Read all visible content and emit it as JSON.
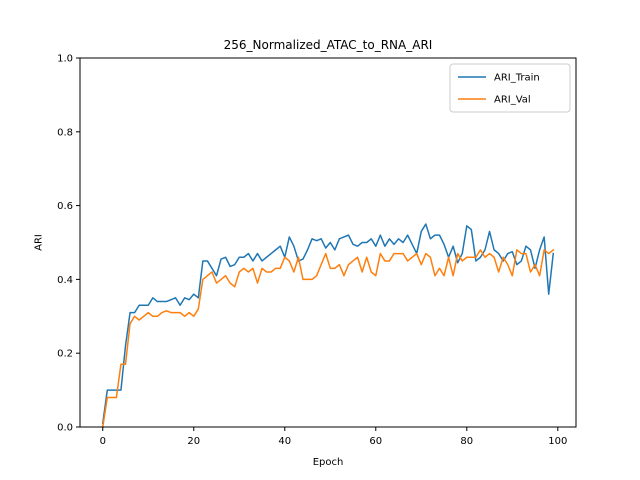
{
  "chart_data": {
    "type": "line",
    "title": "256_Normalized_ATAC_to_RNA_ARI",
    "xlabel": "Epoch",
    "ylabel": "ARI",
    "xlim": [
      -5,
      104
    ],
    "ylim": [
      0.0,
      1.0
    ],
    "x_ticks": [
      0,
      20,
      40,
      60,
      80,
      100
    ],
    "y_ticks": [
      0.0,
      0.2,
      0.4,
      0.6,
      0.8,
      1.0
    ],
    "x_tick_labels": [
      "0",
      "20",
      "40",
      "60",
      "80",
      "100"
    ],
    "y_tick_labels": [
      "0.0",
      "0.2",
      "0.4",
      "0.6",
      "0.8",
      "1.0"
    ],
    "legend_position": "top-right",
    "grid": false,
    "series": [
      {
        "name": "ARI_Train",
        "color": "#1f77b4",
        "values": [
          0.01,
          0.1,
          0.1,
          0.1,
          0.1,
          0.22,
          0.31,
          0.31,
          0.33,
          0.33,
          0.33,
          0.35,
          0.34,
          0.34,
          0.34,
          0.345,
          0.35,
          0.33,
          0.35,
          0.345,
          0.36,
          0.35,
          0.45,
          0.45,
          0.43,
          0.41,
          0.455,
          0.46,
          0.435,
          0.44,
          0.46,
          0.46,
          0.47,
          0.45,
          0.47,
          0.45,
          0.46,
          0.47,
          0.48,
          0.49,
          0.46,
          0.515,
          0.49,
          0.45,
          0.455,
          0.48,
          0.51,
          0.505,
          0.51,
          0.485,
          0.5,
          0.48,
          0.51,
          0.515,
          0.52,
          0.495,
          0.49,
          0.5,
          0.5,
          0.51,
          0.49,
          0.52,
          0.49,
          0.51,
          0.495,
          0.51,
          0.5,
          0.52,
          0.495,
          0.47,
          0.53,
          0.55,
          0.51,
          0.52,
          0.52,
          0.495,
          0.46,
          0.49,
          0.445,
          0.47,
          0.545,
          0.535,
          0.45,
          0.46,
          0.48,
          0.53,
          0.48,
          0.47,
          0.45,
          0.47,
          0.475,
          0.44,
          0.45,
          0.49,
          0.48,
          0.43,
          0.48,
          0.515,
          0.36,
          0.47
        ]
      },
      {
        "name": "ARI_Val",
        "color": "#ff7f0e",
        "values": [
          0.0,
          0.08,
          0.08,
          0.08,
          0.17,
          0.17,
          0.28,
          0.3,
          0.29,
          0.3,
          0.31,
          0.3,
          0.3,
          0.31,
          0.315,
          0.31,
          0.31,
          0.31,
          0.3,
          0.31,
          0.3,
          0.32,
          0.4,
          0.41,
          0.42,
          0.39,
          0.4,
          0.41,
          0.39,
          0.38,
          0.42,
          0.43,
          0.42,
          0.43,
          0.39,
          0.43,
          0.42,
          0.42,
          0.43,
          0.43,
          0.46,
          0.45,
          0.42,
          0.46,
          0.4,
          0.4,
          0.4,
          0.41,
          0.44,
          0.47,
          0.43,
          0.43,
          0.44,
          0.41,
          0.44,
          0.45,
          0.46,
          0.42,
          0.46,
          0.42,
          0.41,
          0.47,
          0.45,
          0.45,
          0.47,
          0.47,
          0.47,
          0.45,
          0.46,
          0.47,
          0.44,
          0.47,
          0.46,
          0.41,
          0.43,
          0.41,
          0.46,
          0.41,
          0.47,
          0.45,
          0.46,
          0.46,
          0.46,
          0.48,
          0.46,
          0.47,
          0.46,
          0.42,
          0.46,
          0.44,
          0.41,
          0.48,
          0.47,
          0.47,
          0.42,
          0.44,
          0.41,
          0.48,
          0.47,
          0.48
        ]
      }
    ]
  }
}
